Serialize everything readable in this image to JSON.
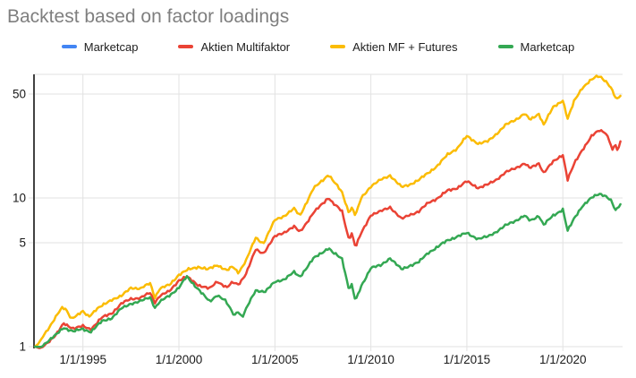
{
  "title": "Backtest based on factor loadings",
  "legend": [
    {
      "label": "Marketcap",
      "color": "#4285F4"
    },
    {
      "label": "Aktien Multifaktor",
      "color": "#EA4335"
    },
    {
      "label": "Aktien MF + Futures",
      "color": "#FBBC04"
    },
    {
      "label": "Marketcap",
      "color": "#34A853"
    }
  ],
  "chart_data": {
    "type": "line",
    "title": "Backtest based on factor loadings",
    "legend_position": "top",
    "grid": true,
    "x_axis": {
      "tick_labels": [
        "1/1/1995",
        "1/1/2000",
        "1/1/2005",
        "1/1/2010",
        "1/1/2015",
        "1/1/2020"
      ],
      "tick_years": [
        1995,
        2000,
        2005,
        2010,
        2015,
        2020
      ],
      "range_years": [
        1992.5,
        2023.1
      ]
    },
    "y_axis": {
      "scale": "log",
      "tick_labels": [
        "1",
        "5",
        "10",
        "50"
      ],
      "ticks": [
        1,
        5,
        10,
        50
      ],
      "range": [
        1,
        68
      ]
    },
    "series": [
      {
        "name": "Marketcap",
        "color": "#4285F4",
        "visible_in_plot": false,
        "points": []
      },
      {
        "name": "Aktien Multifaktor",
        "color": "#EA4335",
        "visible_in_plot": true,
        "points": [
          [
            1992.5,
            1.0
          ],
          [
            1992.8,
            0.97
          ],
          [
            1993.2,
            1.08
          ],
          [
            1993.6,
            1.2
          ],
          [
            1994.0,
            1.43
          ],
          [
            1994.5,
            1.33
          ],
          [
            1995.0,
            1.37
          ],
          [
            1995.4,
            1.31
          ],
          [
            1996.0,
            1.57
          ],
          [
            1996.5,
            1.68
          ],
          [
            1997.0,
            1.94
          ],
          [
            1997.5,
            2.1
          ],
          [
            1998.0,
            2.13
          ],
          [
            1998.5,
            2.3
          ],
          [
            1998.75,
            1.99
          ],
          [
            1999.0,
            2.2
          ],
          [
            1999.5,
            2.35
          ],
          [
            2000.0,
            2.8
          ],
          [
            2000.4,
            2.95
          ],
          [
            2001.0,
            2.6
          ],
          [
            2001.6,
            2.45
          ],
          [
            2002.0,
            2.75
          ],
          [
            2002.5,
            2.5
          ],
          [
            2002.8,
            2.7
          ],
          [
            2003.1,
            2.62
          ],
          [
            2003.5,
            3.1
          ],
          [
            2004.0,
            4.5
          ],
          [
            2004.4,
            4.25
          ],
          [
            2005.0,
            5.5
          ],
          [
            2005.5,
            5.9
          ],
          [
            2006.0,
            6.4
          ],
          [
            2006.3,
            5.9
          ],
          [
            2007.0,
            7.9
          ],
          [
            2007.8,
            10.1
          ],
          [
            2008.0,
            9.3
          ],
          [
            2008.5,
            8.1
          ],
          [
            2008.85,
            5.3
          ],
          [
            2009.0,
            5.8
          ],
          [
            2009.2,
            4.65
          ],
          [
            2009.5,
            5.8
          ],
          [
            2010.0,
            7.7
          ],
          [
            2010.5,
            8.1
          ],
          [
            2011.0,
            8.7
          ],
          [
            2011.6,
            7.2
          ],
          [
            2012.0,
            7.7
          ],
          [
            2012.5,
            8.1
          ],
          [
            2013.0,
            9.3
          ],
          [
            2013.5,
            10.0
          ],
          [
            2014.0,
            11.2
          ],
          [
            2014.5,
            11.7
          ],
          [
            2015.0,
            12.9
          ],
          [
            2015.6,
            11.7
          ],
          [
            2016.1,
            12.3
          ],
          [
            2016.5,
            13.2
          ],
          [
            2017.0,
            14.8
          ],
          [
            2017.5,
            15.8
          ],
          [
            2018.0,
            17.1
          ],
          [
            2018.3,
            15.8
          ],
          [
            2018.75,
            17.1
          ],
          [
            2019.0,
            14.8
          ],
          [
            2019.5,
            17.5
          ],
          [
            2020.0,
            19.6
          ],
          [
            2020.25,
            13.3
          ],
          [
            2020.6,
            17.0
          ],
          [
            2021.0,
            21.0
          ],
          [
            2021.5,
            26.0
          ],
          [
            2021.9,
            28.5
          ],
          [
            2022.2,
            27.8
          ],
          [
            2022.4,
            25.0
          ],
          [
            2022.6,
            20.5
          ],
          [
            2022.72,
            23.5
          ],
          [
            2022.85,
            20.2
          ],
          [
            2023.0,
            24.2
          ]
        ]
      },
      {
        "name": "Aktien MF + Futures",
        "color": "#FBBC04",
        "visible_in_plot": true,
        "points": [
          [
            1992.5,
            1.0
          ],
          [
            1992.7,
            1.05
          ],
          [
            1993.0,
            1.22
          ],
          [
            1993.4,
            1.45
          ],
          [
            1993.9,
            1.82
          ],
          [
            1994.1,
            1.8
          ],
          [
            1994.4,
            1.55
          ],
          [
            1994.7,
            1.62
          ],
          [
            1995.0,
            1.72
          ],
          [
            1995.3,
            1.6
          ],
          [
            1995.7,
            1.78
          ],
          [
            1996.0,
            1.88
          ],
          [
            1996.5,
            2.08
          ],
          [
            1997.0,
            2.18
          ],
          [
            1997.5,
            2.5
          ],
          [
            1998.0,
            2.45
          ],
          [
            1998.5,
            2.68
          ],
          [
            1998.75,
            2.15
          ],
          [
            1999.0,
            2.45
          ],
          [
            1999.5,
            2.6
          ],
          [
            2000.0,
            3.05
          ],
          [
            2000.5,
            3.3
          ],
          [
            2001.0,
            3.45
          ],
          [
            2001.5,
            3.3
          ],
          [
            2002.0,
            3.55
          ],
          [
            2002.5,
            3.25
          ],
          [
            2002.8,
            3.45
          ],
          [
            2003.1,
            3.15
          ],
          [
            2003.5,
            3.8
          ],
          [
            2004.0,
            5.4
          ],
          [
            2004.4,
            4.95
          ],
          [
            2005.0,
            7.1
          ],
          [
            2005.5,
            7.6
          ],
          [
            2006.0,
            8.45
          ],
          [
            2006.3,
            7.6
          ],
          [
            2007.0,
            11.5
          ],
          [
            2007.8,
            14.4
          ],
          [
            2008.0,
            13.2
          ],
          [
            2008.5,
            10.9
          ],
          [
            2008.85,
            8.0
          ],
          [
            2009.0,
            8.6
          ],
          [
            2009.2,
            7.6
          ],
          [
            2009.5,
            10.0
          ],
          [
            2010.0,
            12.0
          ],
          [
            2010.5,
            13.2
          ],
          [
            2011.0,
            14.2
          ],
          [
            2011.6,
            11.8
          ],
          [
            2012.0,
            12.3
          ],
          [
            2012.5,
            13.2
          ],
          [
            2013.0,
            14.8
          ],
          [
            2013.5,
            16.6
          ],
          [
            2014.0,
            19.6
          ],
          [
            2014.5,
            21.6
          ],
          [
            2015.0,
            26.0
          ],
          [
            2015.6,
            23.2
          ],
          [
            2016.1,
            24.0
          ],
          [
            2016.5,
            26.7
          ],
          [
            2017.0,
            30.8
          ],
          [
            2017.5,
            33.4
          ],
          [
            2018.0,
            36.9
          ],
          [
            2018.3,
            33.4
          ],
          [
            2018.75,
            36.9
          ],
          [
            2019.0,
            31.2
          ],
          [
            2019.5,
            40.7
          ],
          [
            2020.0,
            45.5
          ],
          [
            2020.25,
            34.0
          ],
          [
            2020.6,
            45.0
          ],
          [
            2021.0,
            55.0
          ],
          [
            2021.4,
            61.0
          ],
          [
            2021.8,
            66.0
          ],
          [
            2022.0,
            65.0
          ],
          [
            2022.3,
            60.0
          ],
          [
            2022.5,
            55.0
          ],
          [
            2022.65,
            50.0
          ],
          [
            2022.8,
            45.5
          ],
          [
            2023.0,
            49.0
          ]
        ]
      },
      {
        "name": "Marketcap",
        "color": "#34A853",
        "visible_in_plot": true,
        "points": [
          [
            1992.5,
            1.0
          ],
          [
            1992.8,
            0.99
          ],
          [
            1993.2,
            1.1
          ],
          [
            1993.6,
            1.2
          ],
          [
            1994.0,
            1.34
          ],
          [
            1994.5,
            1.27
          ],
          [
            1995.0,
            1.31
          ],
          [
            1995.4,
            1.26
          ],
          [
            1996.0,
            1.48
          ],
          [
            1996.5,
            1.56
          ],
          [
            1997.0,
            1.8
          ],
          [
            1997.5,
            1.95
          ],
          [
            1998.0,
            2.02
          ],
          [
            1998.5,
            2.15
          ],
          [
            1998.75,
            1.83
          ],
          [
            1999.0,
            2.0
          ],
          [
            1999.5,
            2.2
          ],
          [
            2000.0,
            2.5
          ],
          [
            2000.4,
            2.95
          ],
          [
            2000.8,
            2.6
          ],
          [
            2001.0,
            2.45
          ],
          [
            2001.6,
            2.0
          ],
          [
            2002.0,
            2.23
          ],
          [
            2002.4,
            2.05
          ],
          [
            2002.9,
            1.61
          ],
          [
            2003.05,
            1.75
          ],
          [
            2003.3,
            1.58
          ],
          [
            2003.6,
            1.9
          ],
          [
            2004.0,
            2.39
          ],
          [
            2004.5,
            2.35
          ],
          [
            2005.0,
            2.72
          ],
          [
            2005.5,
            2.85
          ],
          [
            2006.0,
            3.16
          ],
          [
            2006.3,
            2.95
          ],
          [
            2007.0,
            3.9
          ],
          [
            2007.8,
            4.62
          ],
          [
            2008.0,
            4.3
          ],
          [
            2008.5,
            3.9
          ],
          [
            2008.85,
            2.45
          ],
          [
            2009.0,
            2.6
          ],
          [
            2009.2,
            2.02
          ],
          [
            2009.5,
            2.55
          ],
          [
            2010.0,
            3.4
          ],
          [
            2010.5,
            3.5
          ],
          [
            2011.0,
            3.95
          ],
          [
            2011.6,
            3.3
          ],
          [
            2012.0,
            3.5
          ],
          [
            2012.5,
            3.7
          ],
          [
            2013.0,
            4.3
          ],
          [
            2013.5,
            4.7
          ],
          [
            2014.0,
            5.2
          ],
          [
            2014.5,
            5.5
          ],
          [
            2015.0,
            5.8
          ],
          [
            2015.6,
            5.3
          ],
          [
            2016.1,
            5.5
          ],
          [
            2016.5,
            5.9
          ],
          [
            2017.0,
            6.5
          ],
          [
            2017.5,
            7.0
          ],
          [
            2018.0,
            7.6
          ],
          [
            2018.3,
            7.0
          ],
          [
            2018.75,
            7.6
          ],
          [
            2019.0,
            6.6
          ],
          [
            2019.5,
            7.6
          ],
          [
            2020.0,
            8.4
          ],
          [
            2020.25,
            6.0
          ],
          [
            2020.6,
            7.3
          ],
          [
            2021.0,
            8.8
          ],
          [
            2021.5,
            10.0
          ],
          [
            2021.9,
            10.7
          ],
          [
            2022.2,
            10.4
          ],
          [
            2022.5,
            9.6
          ],
          [
            2022.75,
            8.2
          ],
          [
            2023.0,
            9.1
          ]
        ]
      }
    ]
  }
}
